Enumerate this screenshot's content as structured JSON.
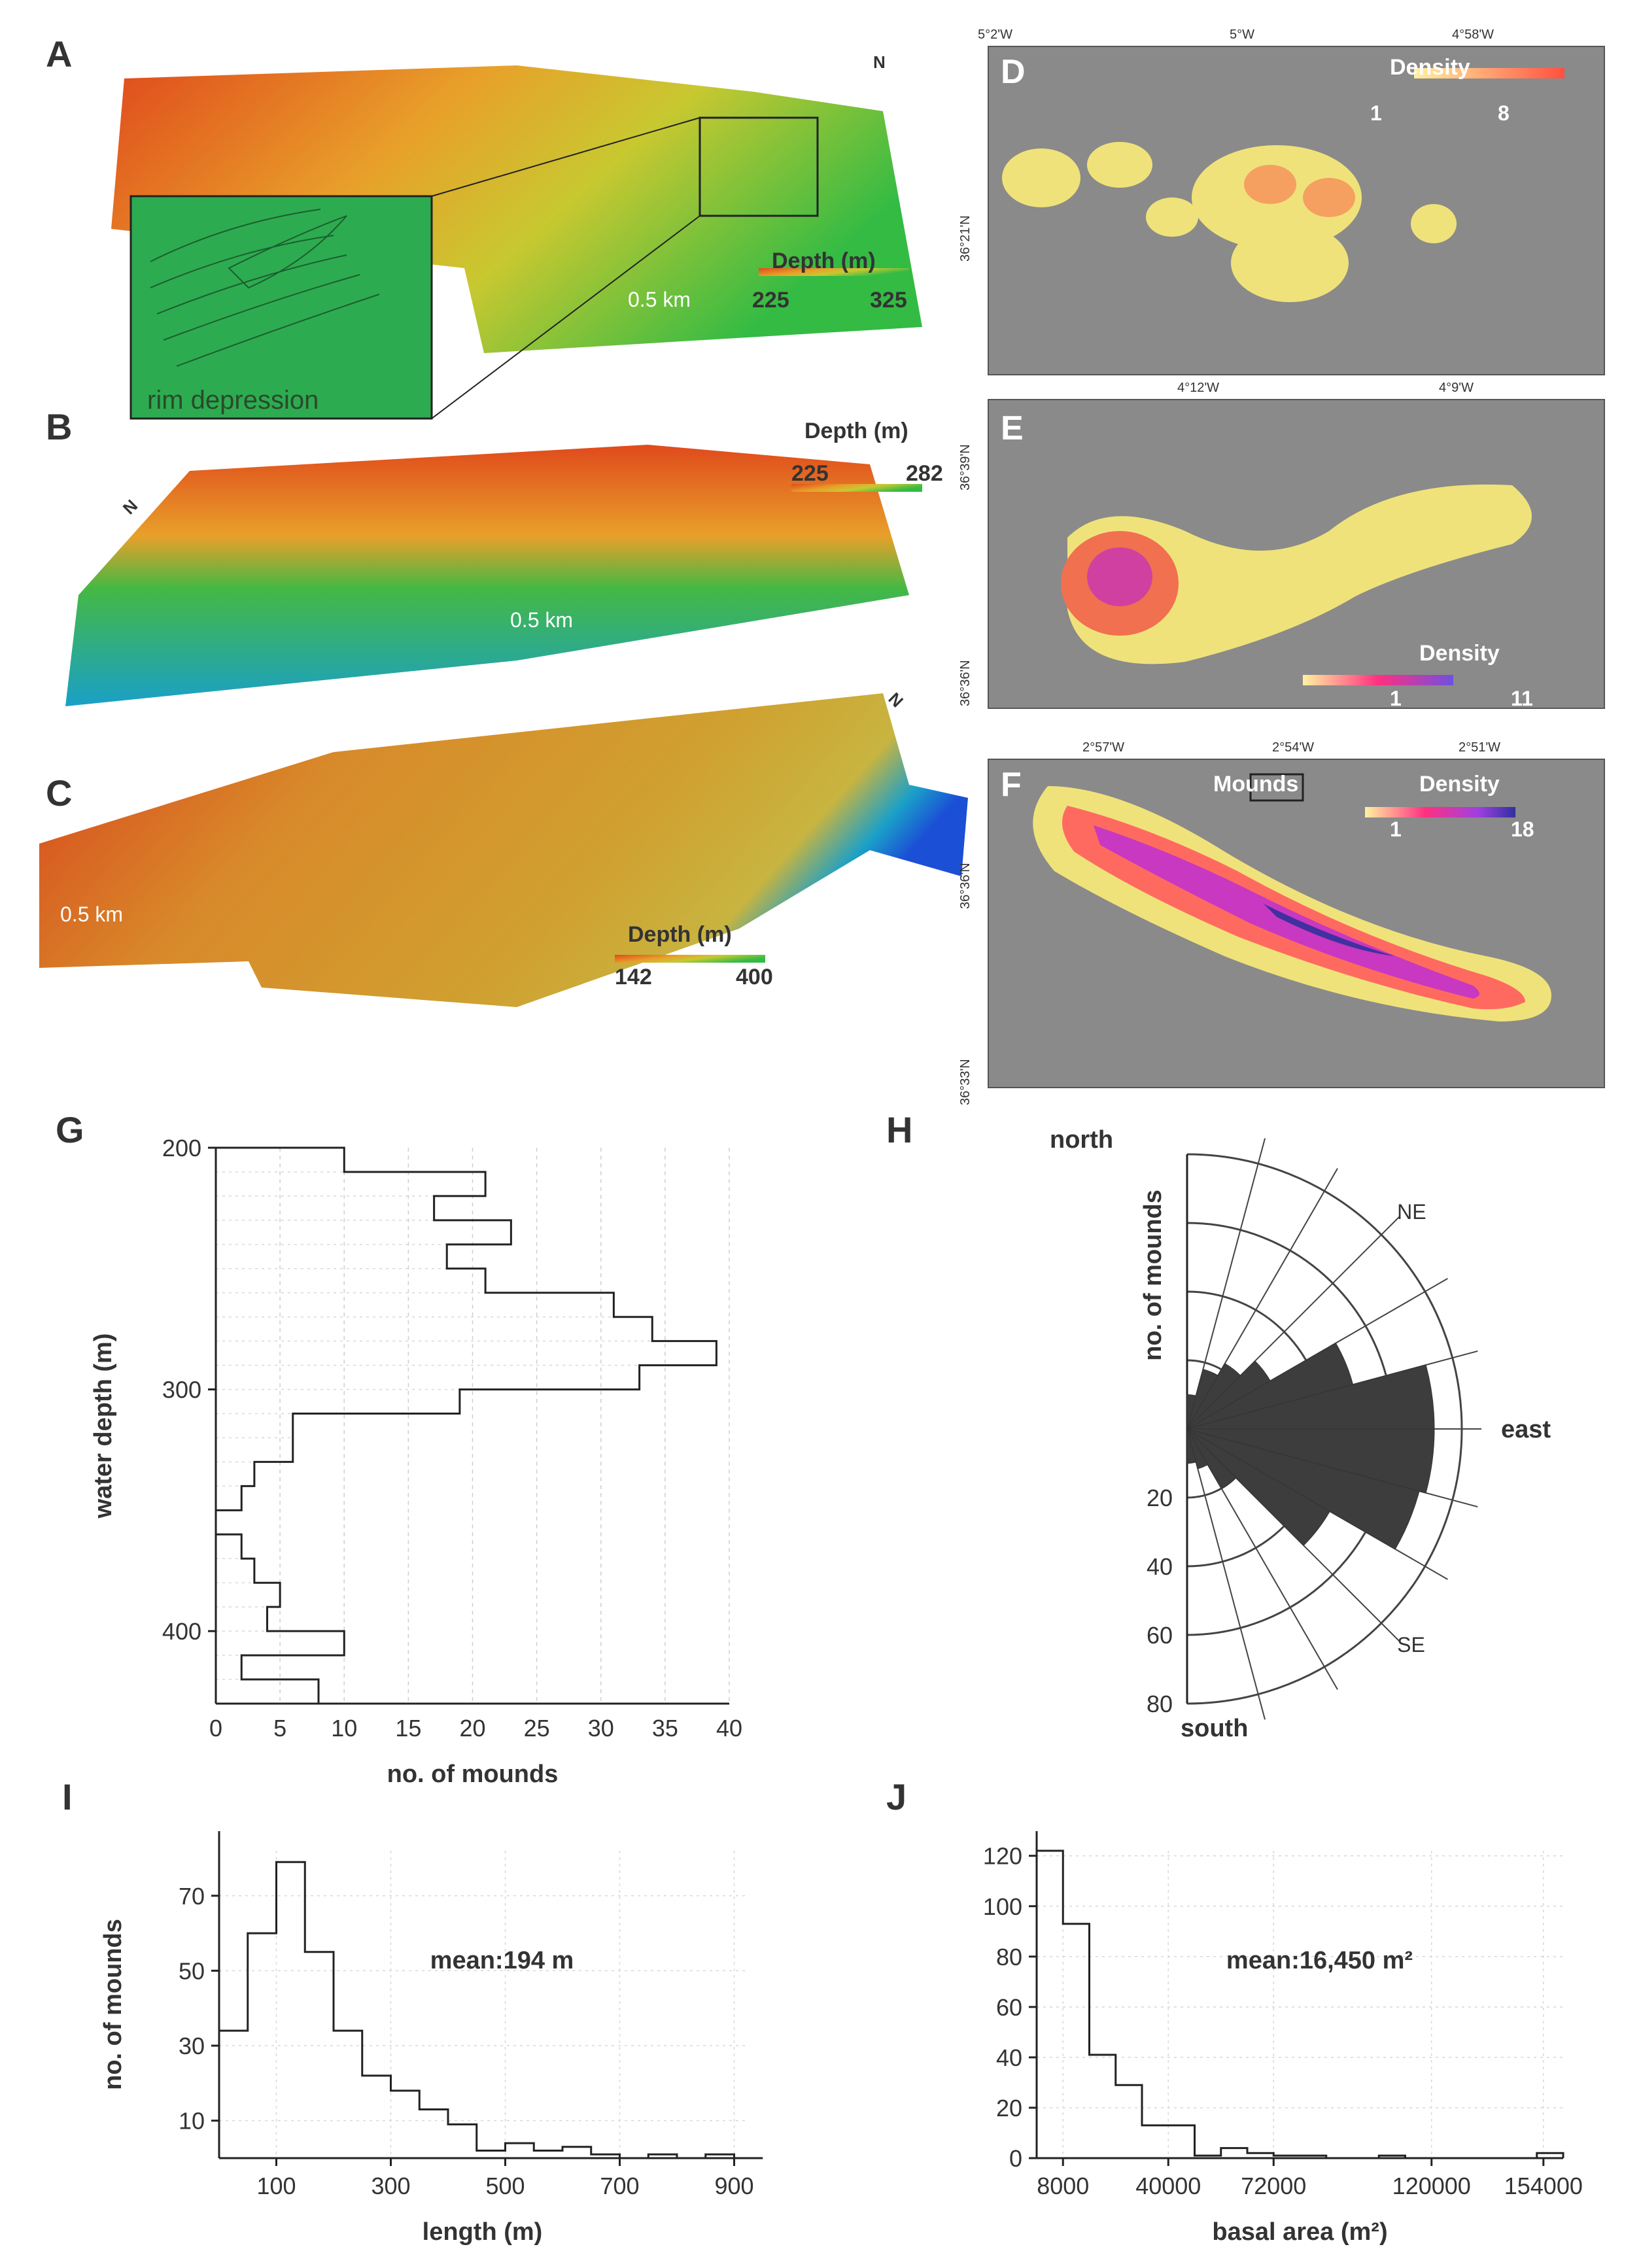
{
  "panels": {
    "A": {
      "letter": "A",
      "depth_title": "Depth (m)",
      "range_min": "225",
      "range_max": "325",
      "scale": "0.5 km",
      "inset_label": "rim depression",
      "north": "N"
    },
    "B": {
      "letter": "B",
      "depth_title": "Depth (m)",
      "range_min": "225",
      "range_max": "282",
      "scale": "0.5 km",
      "north": "N"
    },
    "C": {
      "letter": "C",
      "depth_title": "Depth (m)",
      "range_min": "142",
      "range_max": "400",
      "scale": "0.5 km",
      "north": "N"
    },
    "D": {
      "letter": "D",
      "density_title": "Density",
      "range_min": "1",
      "range_max": "8",
      "lon_ticks": [
        "5°2'W",
        "5°W",
        "4°58'W"
      ],
      "lat_ticks": [
        "36°21'N"
      ]
    },
    "E": {
      "letter": "E",
      "density_title": "Density",
      "range_min": "1",
      "range_max": "11",
      "lon_ticks": [
        "4°12'W",
        "4°9'W"
      ],
      "lat_ticks": [
        "36°39'N",
        "36°36'N"
      ]
    },
    "F": {
      "letter": "F",
      "density_title": "Density",
      "range_min": "1",
      "range_max": "18",
      "mounds_label": "Mounds",
      "lon_ticks": [
        "2°57'W",
        "2°54'W",
        "2°51'W"
      ],
      "lat_ticks": [
        "36°36'N",
        "36°33'N"
      ]
    }
  },
  "colors": {
    "depth_ramp": [
      "#e03a1e",
      "#f5a623",
      "#f2e600",
      "#2db84a",
      "#1aa0c8",
      "#1b4fd6"
    ],
    "density_ramp_d": [
      "#fff2a0",
      "#ff5040"
    ],
    "density_ramp_ef": [
      "#fff2a0",
      "#ff3080",
      "#a040e0",
      "#3030a0"
    ],
    "bar": "#3d3d3d"
  },
  "chart_data": [
    {
      "type": "bar",
      "panel": "G",
      "letter": "G",
      "orientation": "horizontal-step",
      "xlabel": "no. of mounds",
      "ylabel": "water depth (m)",
      "ylim": [
        200,
        430
      ],
      "xlim": [
        0,
        40
      ],
      "yticks": [
        {
          "v": 200,
          "label": "200"
        },
        {
          "v": 300,
          "label": "300"
        },
        {
          "v": 400,
          "label": "400"
        }
      ],
      "xticks": [
        0,
        5,
        10,
        15,
        20,
        25,
        30,
        35,
        40
      ],
      "bins": [
        [
          200,
          10
        ],
        [
          210,
          21
        ],
        [
          220,
          17
        ],
        [
          230,
          23
        ],
        [
          240,
          18
        ],
        [
          250,
          21
        ],
        [
          260,
          31
        ],
        [
          270,
          34
        ],
        [
          280,
          39
        ],
        [
          290,
          33
        ],
        [
          300,
          19
        ],
        [
          310,
          6
        ],
        [
          320,
          6
        ],
        [
          330,
          3
        ],
        [
          340,
          2
        ],
        [
          350,
          0
        ],
        [
          360,
          2
        ],
        [
          370,
          3
        ],
        [
          380,
          5
        ],
        [
          390,
          4
        ],
        [
          400,
          10
        ],
        [
          410,
          2
        ],
        [
          420,
          8
        ],
        [
          430,
          5
        ]
      ]
    },
    {
      "type": "rose",
      "panel": "H",
      "letter": "H",
      "ylabel": "no. of mounds",
      "dir_labels": {
        "north": "north",
        "south": "south",
        "east": "east",
        "ne": "NE",
        "se": "SE"
      },
      "rings": [
        20,
        40,
        60,
        80
      ],
      "ring_labels": [
        "20",
        "40",
        "60",
        "80"
      ],
      "petals": [
        {
          "from": 0,
          "to": 15,
          "v": 10
        },
        {
          "from": 15,
          "to": 30,
          "v": 18
        },
        {
          "from": 30,
          "to": 45,
          "v": 22
        },
        {
          "from": 45,
          "to": 60,
          "v": 28
        },
        {
          "from": 60,
          "to": 75,
          "v": 50
        },
        {
          "from": 75,
          "to": 90,
          "v": 72
        },
        {
          "from": 90,
          "to": 105,
          "v": 72
        },
        {
          "from": 105,
          "to": 120,
          "v": 70
        },
        {
          "from": 120,
          "to": 135,
          "v": 48
        },
        {
          "from": 135,
          "to": 150,
          "v": 20
        },
        {
          "from": 150,
          "to": 165,
          "v": 12
        },
        {
          "from": 165,
          "to": 180,
          "v": 10
        }
      ]
    },
    {
      "type": "bar",
      "panel": "I",
      "letter": "I",
      "xlabel": "length (m)",
      "ylabel": "no. of mounds",
      "annotation": "mean:194 m",
      "xlim": [
        0,
        920
      ],
      "ylim": [
        0,
        82
      ],
      "xticks": [
        100,
        300,
        500,
        700,
        900
      ],
      "yticks": [
        10,
        30,
        50,
        70
      ],
      "bins": [
        [
          0,
          34
        ],
        [
          50,
          60
        ],
        [
          100,
          79
        ],
        [
          150,
          55
        ],
        [
          200,
          34
        ],
        [
          250,
          22
        ],
        [
          300,
          18
        ],
        [
          350,
          13
        ],
        [
          400,
          9
        ],
        [
          450,
          2
        ],
        [
          500,
          4
        ],
        [
          550,
          2
        ],
        [
          600,
          3
        ],
        [
          650,
          1
        ],
        [
          700,
          0
        ],
        [
          750,
          1
        ],
        [
          800,
          0
        ],
        [
          850,
          1
        ],
        [
          900,
          0
        ]
      ]
    },
    {
      "type": "bar",
      "panel": "J",
      "letter": "J",
      "xlabel": "basal area (m²)",
      "ylabel": "",
      "annotation": "mean:16,450 m²",
      "xlim": [
        0,
        160000
      ],
      "ylim": [
        0,
        122
      ],
      "xticks": [
        {
          "v": 8000,
          "label": "8000"
        },
        {
          "v": 40000,
          "label": "40000"
        },
        {
          "v": 72000,
          "label": "72000"
        },
        {
          "v": 120000,
          "label": "120000"
        },
        {
          "v": 154000,
          "label": "154000"
        }
      ],
      "yticks": [
        0,
        20,
        40,
        60,
        80,
        100,
        120
      ],
      "bins": [
        [
          0,
          122
        ],
        [
          8000,
          93
        ],
        [
          16000,
          41
        ],
        [
          24000,
          29
        ],
        [
          32000,
          13
        ],
        [
          40000,
          13
        ],
        [
          48000,
          1
        ],
        [
          56000,
          4
        ],
        [
          64000,
          2
        ],
        [
          72000,
          1
        ],
        [
          80000,
          1
        ],
        [
          88000,
          0
        ],
        [
          96000,
          0
        ],
        [
          104000,
          1
        ],
        [
          112000,
          0
        ],
        [
          120000,
          0
        ],
        [
          128000,
          0
        ],
        [
          136000,
          0
        ],
        [
          144000,
          0
        ],
        [
          152000,
          2
        ]
      ]
    }
  ]
}
